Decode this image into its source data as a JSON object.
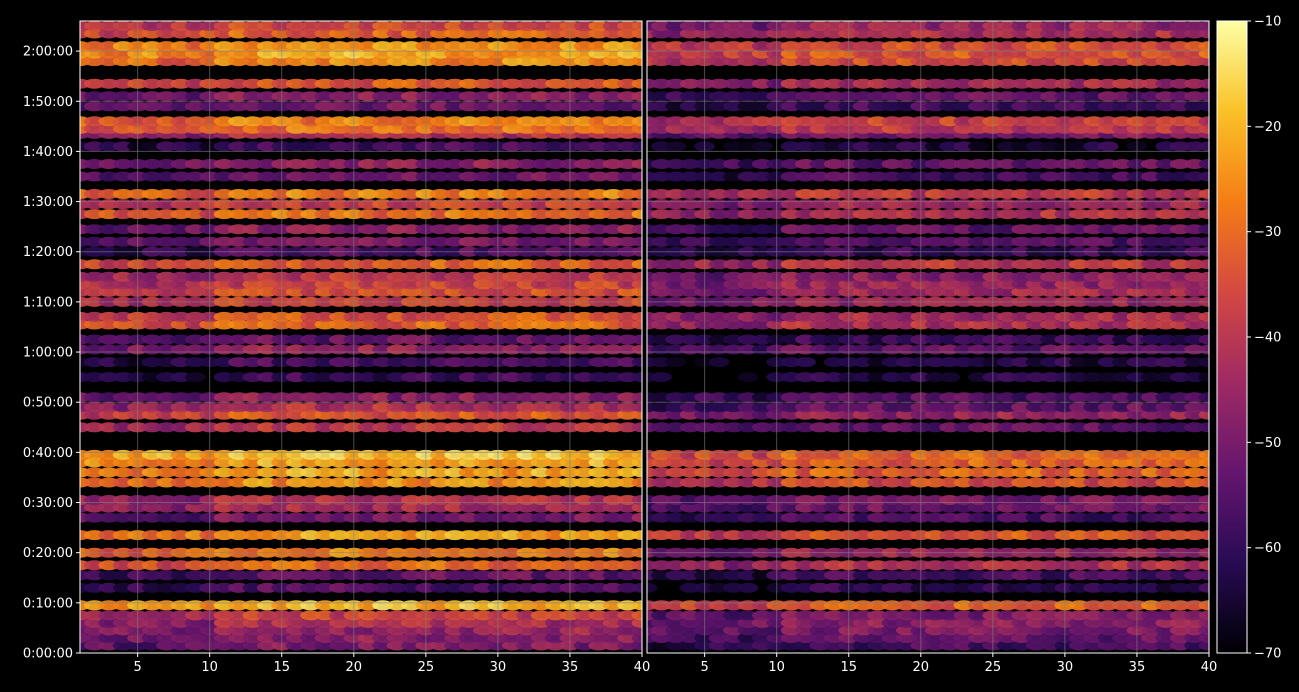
{
  "chart_data": [
    {
      "type": "heatmap",
      "panel": "left",
      "title": "",
      "xlabel": "",
      "ylabel": "",
      "xlim": [
        1,
        40
      ],
      "ylim_seconds": [
        0,
        7560
      ],
      "x_ticks": [
        5,
        10,
        15,
        20,
        25,
        30,
        35,
        40
      ],
      "y_ticks": [
        "0:00:00",
        "0:10:00",
        "0:20:00",
        "0:30:00",
        "0:40:00",
        "0:50:00",
        "1:00:00",
        "1:10:00",
        "1:20:00",
        "1:30:00",
        "1:40:00",
        "1:50:00",
        "2:00:00"
      ],
      "grid": true,
      "bands": [
        {
          "t_min": 1.5,
          "level": -52
        },
        {
          "t_min": 3,
          "level": -50
        },
        {
          "t_min": 4.5,
          "level": -48
        },
        {
          "t_min": 6,
          "level": -45
        },
        {
          "t_min": 7.5,
          "level": -40
        },
        {
          "t_min": 9.5,
          "level": -22
        },
        {
          "t_min": 13,
          "level": -58
        },
        {
          "t_min": 15.5,
          "level": -56
        },
        {
          "t_min": 17.5,
          "level": -33
        },
        {
          "t_min": 20,
          "level": -30
        },
        {
          "t_min": 23.5,
          "level": -26
        },
        {
          "t_min": 27,
          "level": -52
        },
        {
          "t_min": 29,
          "level": -46
        },
        {
          "t_min": 30.5,
          "level": -44
        },
        {
          "t_min": 34,
          "level": -28
        },
        {
          "t_min": 36,
          "level": -25
        },
        {
          "t_min": 38,
          "level": -24
        },
        {
          "t_min": 39.5,
          "level": -20
        },
        {
          "t_min": 45,
          "level": -42
        },
        {
          "t_min": 47.5,
          "level": -36
        },
        {
          "t_min": 49,
          "level": -44
        },
        {
          "t_min": 51,
          "level": -50
        },
        {
          "t_min": 55,
          "level": -62
        },
        {
          "t_min": 58,
          "level": -60
        },
        {
          "t_min": 60.5,
          "level": -48
        },
        {
          "t_min": 62.5,
          "level": -56
        },
        {
          "t_min": 65.5,
          "level": -34
        },
        {
          "t_min": 67,
          "level": -36
        },
        {
          "t_min": 70,
          "level": -40
        },
        {
          "t_min": 72,
          "level": -38
        },
        {
          "t_min": 73.5,
          "level": -40
        },
        {
          "t_min": 75,
          "level": -42
        },
        {
          "t_min": 77.5,
          "level": -34
        },
        {
          "t_min": 80,
          "level": -58
        },
        {
          "t_min": 82,
          "level": -52
        },
        {
          "t_min": 84.5,
          "level": -50
        },
        {
          "t_min": 87.5,
          "level": -32
        },
        {
          "t_min": 89.5,
          "level": -40
        },
        {
          "t_min": 91.5,
          "level": -30
        },
        {
          "t_min": 95,
          "level": -54
        },
        {
          "t_min": 97.5,
          "level": -50
        },
        {
          "t_min": 101,
          "level": -60
        },
        {
          "t_min": 103.5,
          "level": -44
        },
        {
          "t_min": 104.5,
          "level": -32
        },
        {
          "t_min": 106,
          "level": -30
        },
        {
          "t_min": 109,
          "level": -54
        },
        {
          "t_min": 111,
          "level": -50
        },
        {
          "t_min": 113.5,
          "level": -36
        },
        {
          "t_min": 118,
          "level": -28
        },
        {
          "t_min": 119.5,
          "level": -24
        },
        {
          "t_min": 121,
          "level": -26
        },
        {
          "t_min": 123.5,
          "level": -34
        },
        {
          "t_min": 125,
          "level": -38
        }
      ]
    },
    {
      "type": "heatmap",
      "panel": "right",
      "title": "",
      "xlabel": "",
      "ylabel": "",
      "xlim": [
        1,
        40
      ],
      "ylim_seconds": [
        0,
        7560
      ],
      "x_ticks": [
        5,
        10,
        15,
        20,
        25,
        30,
        35,
        40
      ],
      "grid": true,
      "bands": [
        {
          "t_min": 1.5,
          "level": -60
        },
        {
          "t_min": 3,
          "level": -56
        },
        {
          "t_min": 4.5,
          "level": -52
        },
        {
          "t_min": 6,
          "level": -50
        },
        {
          "t_min": 7.5,
          "level": -52
        },
        {
          "t_min": 9.5,
          "level": -34
        },
        {
          "t_min": 13,
          "level": -64
        },
        {
          "t_min": 15.5,
          "level": -60
        },
        {
          "t_min": 17.5,
          "level": -44
        },
        {
          "t_min": 20,
          "level": -48
        },
        {
          "t_min": 23.5,
          "level": -36
        },
        {
          "t_min": 27,
          "level": -60
        },
        {
          "t_min": 29,
          "level": -54
        },
        {
          "t_min": 30.5,
          "level": -52
        },
        {
          "t_min": 34,
          "level": -38
        },
        {
          "t_min": 36,
          "level": -34
        },
        {
          "t_min": 38,
          "level": -34
        },
        {
          "t_min": 39.5,
          "level": -34
        },
        {
          "t_min": 45,
          "level": -56
        },
        {
          "t_min": 47.5,
          "level": -48
        },
        {
          "t_min": 49,
          "level": -56
        },
        {
          "t_min": 51,
          "level": -58
        },
        {
          "t_min": 55,
          "level": -66
        },
        {
          "t_min": 58,
          "level": -66
        },
        {
          "t_min": 60.5,
          "level": -56
        },
        {
          "t_min": 62.5,
          "level": -62
        },
        {
          "t_min": 65.5,
          "level": -44
        },
        {
          "t_min": 67,
          "level": -46
        },
        {
          "t_min": 70,
          "level": -48
        },
        {
          "t_min": 72,
          "level": -46
        },
        {
          "t_min": 73.5,
          "level": -48
        },
        {
          "t_min": 75,
          "level": -50
        },
        {
          "t_min": 77.5,
          "level": -42
        },
        {
          "t_min": 80,
          "level": -62
        },
        {
          "t_min": 82,
          "level": -58
        },
        {
          "t_min": 84.5,
          "level": -56
        },
        {
          "t_min": 87.5,
          "level": -44
        },
        {
          "t_min": 89.5,
          "level": -48
        },
        {
          "t_min": 91.5,
          "level": -42
        },
        {
          "t_min": 95,
          "level": -60
        },
        {
          "t_min": 97.5,
          "level": -56
        },
        {
          "t_min": 101,
          "level": -66
        },
        {
          "t_min": 103.5,
          "level": -52
        },
        {
          "t_min": 104.5,
          "level": -42
        },
        {
          "t_min": 106,
          "level": -40
        },
        {
          "t_min": 109,
          "level": -60
        },
        {
          "t_min": 111,
          "level": -56
        },
        {
          "t_min": 113.5,
          "level": -46
        },
        {
          "t_min": 118,
          "level": -38
        },
        {
          "t_min": 119.5,
          "level": -36
        },
        {
          "t_min": 121,
          "level": -38
        },
        {
          "t_min": 123.5,
          "level": -44
        },
        {
          "t_min": 125,
          "level": -48
        }
      ]
    }
  ],
  "colorbar": {
    "colormap": "inferno",
    "range": [
      -70,
      -10
    ],
    "ticks": [
      "−10",
      "−20",
      "−30",
      "−40",
      "−50",
      "−60",
      "−70"
    ],
    "tick_values": [
      -10,
      -20,
      -30,
      -40,
      -50,
      -60,
      -70
    ]
  },
  "colors": {
    "background": "#000000",
    "foreground": "#ffffff",
    "grid": "#808080"
  }
}
